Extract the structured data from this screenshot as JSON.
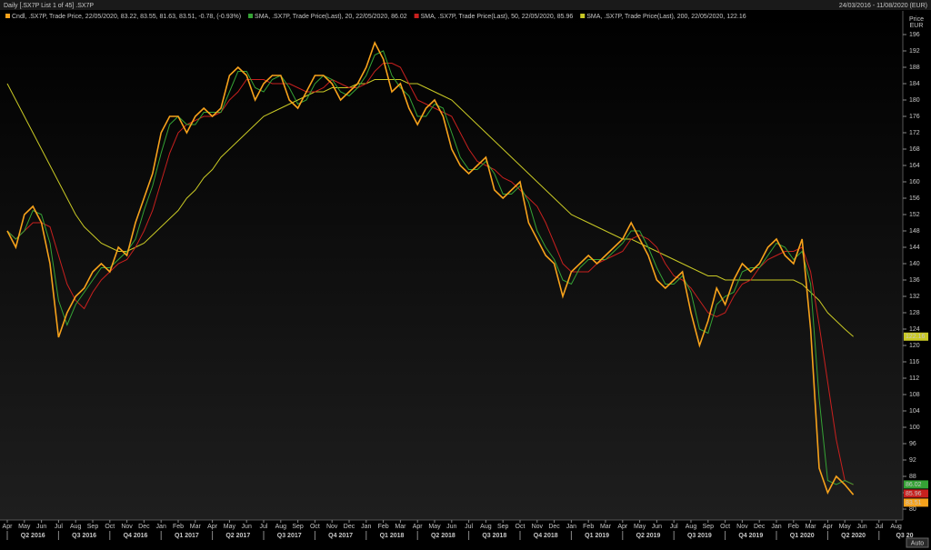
{
  "chart_data": {
    "type": "line",
    "title": "Daily [.SX7P List 1 of 45] .SX7P",
    "date_range": "24/03/2016 - 11/08/2020 (EUR)",
    "y_label": "Price",
    "y_unit": "EUR",
    "button": "Auto",
    "ylim": [
      78,
      198
    ],
    "yticks": [
      80,
      84,
      88,
      92,
      96,
      100,
      104,
      108,
      112,
      116,
      120,
      124,
      128,
      132,
      136,
      140,
      144,
      148,
      152,
      156,
      160,
      164,
      168,
      172,
      176,
      180,
      184,
      188,
      192,
      196
    ],
    "categories": [
      "Apr",
      null,
      "May",
      null,
      "Jun",
      null,
      "Jul",
      null,
      "Aug",
      null,
      "Sep",
      null,
      "Oct",
      null,
      "Nov",
      null,
      "Dec",
      null,
      "Jan",
      null,
      "Feb",
      null,
      "Mar",
      null,
      "Apr",
      null,
      "May",
      null,
      "Jun",
      null,
      "Jul",
      null,
      "Aug",
      null,
      "Sep",
      null,
      "Oct",
      null,
      "Nov",
      null,
      "Dec",
      null,
      "Jan",
      null,
      "Feb",
      null,
      "Mar",
      null,
      "Apr",
      null,
      "May",
      null,
      "Jun",
      null,
      "Jul",
      null,
      "Aug",
      null,
      "Sep",
      null,
      "Oct",
      null,
      "Nov",
      null,
      "Dec",
      null,
      "Jan",
      null,
      "Feb",
      null,
      "Mar",
      null,
      "Apr",
      null,
      "May",
      null,
      "Jun",
      null,
      "Jul",
      null,
      "Aug",
      null,
      "Sep",
      null,
      "Oct",
      null,
      "Nov",
      null,
      "Dec",
      null,
      "Jan",
      null,
      "Feb",
      null,
      "Mar",
      null,
      "Apr",
      null,
      "May",
      null,
      "Jun",
      null,
      "Jul",
      null,
      "Aug",
      null
    ],
    "quarters": [
      "Q2 2016",
      "Q3 2016",
      "Q4 2016",
      "Q1 2017",
      "Q2 2017",
      "Q3 2017",
      "Q4 2017",
      "Q1 2018",
      "Q2 2018",
      "Q3 2018",
      "Q4 2018",
      "Q1 2019",
      "Q2 2019",
      "Q3 2019",
      "Q4 2019",
      "Q1 2020",
      "Q2 2020",
      "Q3 20"
    ],
    "series": [
      {
        "name": "SMA, .SX7P, Trade Price(Last), 200, 22/05/2020, 122.16",
        "color": "#c9c925",
        "values": [
          184,
          180,
          176,
          172,
          168,
          164,
          160,
          156,
          152,
          149,
          147,
          145,
          144,
          143,
          143,
          144,
          145,
          147,
          149,
          151,
          153,
          156,
          158,
          161,
          163,
          166,
          168,
          170,
          172,
          174,
          176,
          177,
          178,
          179,
          180,
          181,
          182,
          182,
          183,
          183,
          183,
          184,
          184,
          185,
          185,
          185,
          185,
          184,
          184,
          183,
          182,
          181,
          180,
          178,
          176,
          174,
          172,
          170,
          168,
          166,
          164,
          162,
          160,
          158,
          156,
          154,
          152,
          151,
          150,
          149,
          148,
          147,
          146,
          146,
          145,
          144,
          143,
          142,
          141,
          140,
          139,
          138,
          137,
          137,
          136,
          136,
          136,
          136,
          136,
          136,
          136,
          136,
          136,
          135,
          133,
          131,
          128,
          126,
          124,
          122.16,
          null,
          null,
          null,
          null,
          null,
          null
        ]
      },
      {
        "name": "SMA, .SX7P, Trade Price(Last), 50, 22/05/2020, 85.96",
        "color": "#c8201e",
        "values": [
          148,
          146,
          148,
          150,
          150,
          149,
          142,
          135,
          131,
          129,
          133,
          136,
          138,
          140,
          141,
          144,
          148,
          153,
          160,
          167,
          172,
          174,
          175,
          176,
          176,
          177,
          180,
          182,
          185,
          185,
          185,
          184,
          184,
          184,
          183,
          182,
          182,
          183,
          185,
          184,
          183,
          183,
          184,
          187,
          189,
          189,
          188,
          184,
          180,
          179,
          178,
          177,
          176,
          172,
          168,
          165,
          164,
          163,
          161,
          160,
          158,
          156,
          154,
          150,
          145,
          140,
          138,
          138,
          138,
          140,
          141,
          142,
          143,
          146,
          147,
          146,
          144,
          140,
          137,
          136,
          134,
          131,
          128,
          127,
          128,
          132,
          135,
          136,
          139,
          141,
          142,
          143,
          143,
          144,
          138,
          125,
          111,
          97,
          87,
          85.96,
          null,
          null,
          null,
          null,
          null,
          null
        ]
      },
      {
        "name": "SMA, .SX7P, Trade Price(Last), 20, 22/05/2020, 86.02",
        "color": "#35a335",
        "values": [
          148,
          146,
          148,
          153,
          152,
          145,
          131,
          125,
          130,
          133,
          136,
          139,
          139,
          141,
          143,
          146,
          153,
          159,
          167,
          174,
          176,
          174,
          174,
          177,
          177,
          177,
          182,
          187,
          187,
          183,
          182,
          185,
          186,
          183,
          179,
          180,
          184,
          186,
          185,
          182,
          181,
          183,
          186,
          191,
          192,
          186,
          183,
          181,
          176,
          176,
          179,
          178,
          172,
          166,
          163,
          163,
          165,
          162,
          157,
          157,
          159,
          155,
          148,
          144,
          141,
          136,
          135,
          139,
          141,
          141,
          141,
          143,
          145,
          148,
          148,
          144,
          139,
          135,
          135,
          137,
          133,
          124,
          123,
          130,
          132,
          133,
          138,
          139,
          139,
          142,
          145,
          144,
          141,
          143,
          135,
          107,
          87,
          86,
          87,
          86.02,
          null,
          null,
          null,
          null,
          null,
          null
        ]
      },
      {
        "name": "Cndl, .SX7P, Trade Price, 22/05/2020, 83.22, 83.55, 81.63, 83.51, -0.78, (-0.93%)",
        "color": "#f7a21b",
        "values": [
          148,
          144,
          152,
          154,
          150,
          140,
          122,
          128,
          132,
          134,
          138,
          140,
          138,
          144,
          142,
          150,
          156,
          162,
          172,
          176,
          176,
          172,
          176,
          178,
          176,
          178,
          186,
          188,
          186,
          180,
          184,
          186,
          186,
          180,
          178,
          182,
          186,
          186,
          184,
          180,
          182,
          184,
          188,
          194,
          190,
          182,
          184,
          178,
          174,
          178,
          180,
          176,
          168,
          164,
          162,
          164,
          166,
          158,
          156,
          158,
          160,
          150,
          146,
          142,
          140,
          132,
          138,
          140,
          142,
          140,
          142,
          144,
          146,
          150,
          146,
          142,
          136,
          134,
          136,
          138,
          128,
          120,
          126,
          134,
          130,
          136,
          140,
          138,
          140,
          144,
          146,
          142,
          140,
          146,
          124,
          90,
          84,
          88,
          86,
          83.51,
          null,
          null,
          null,
          null,
          null,
          null
        ]
      }
    ]
  }
}
